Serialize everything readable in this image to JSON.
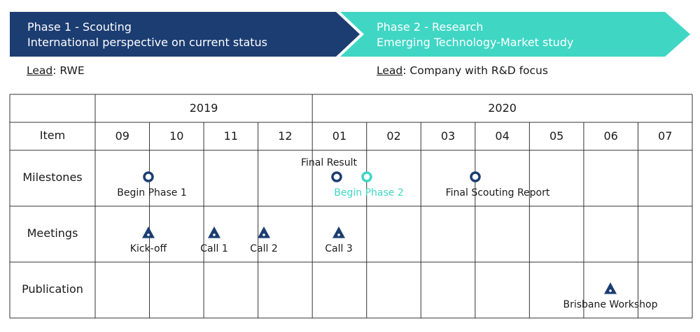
{
  "colors": {
    "phase1": "#1c3d72",
    "phase2": "#3fd6c4",
    "phase2_text": "#ffffff",
    "phase1_text": "#ffffff",
    "grid": "#333333",
    "marker_dark": "#1c3d72",
    "marker_teal": "#3fd6c4"
  },
  "phases": [
    {
      "line1": "Phase 1 - Scouting",
      "line2": "International perspective on current status",
      "lead_label": "Lead",
      "lead_value": ": RWE"
    },
    {
      "line1": "Phase 2 - Research",
      "line2": "Emerging Technology-Market study",
      "lead_label": "Lead",
      "lead_value": ": Company with R&D focus"
    }
  ],
  "table": {
    "years": [
      "2019",
      "2020"
    ],
    "item_header": "Item",
    "months": [
      "09",
      "10",
      "11",
      "12",
      "01",
      "02",
      "03",
      "04",
      "05",
      "06",
      "07"
    ],
    "rows": [
      "Milestones",
      "Meetings",
      "Publication"
    ]
  },
  "markers": [
    {
      "row": 0,
      "month": "09",
      "shape": "circle",
      "color": "dark",
      "label": "Begin Phase 1",
      "label_color": "dark_text",
      "label_pos": "below"
    },
    {
      "row": 0,
      "month": "01",
      "shape": "circle",
      "color": "dark",
      "label": "Final Result",
      "label_color": "dark_text",
      "label_pos": "above"
    },
    {
      "row": 0,
      "month": "02",
      "shape": "circle",
      "color": "teal",
      "label": "Begin Phase 2",
      "label_color": "teal",
      "label_pos": "below"
    },
    {
      "row": 0,
      "month": "04",
      "shape": "circle",
      "color": "dark",
      "label": "Final Scouting Report",
      "label_color": "dark_text",
      "label_pos": "below"
    },
    {
      "row": 1,
      "month": "09",
      "shape": "triangle",
      "color": "dark",
      "label": "Kick-off",
      "label_color": "dark_text",
      "label_pos": "below"
    },
    {
      "row": 1,
      "month": "10",
      "shape": "triangle",
      "color": "dark",
      "label": "Call 1",
      "label_color": "dark_text",
      "label_pos": "below"
    },
    {
      "row": 1,
      "month": "11",
      "shape": "triangle",
      "color": "dark",
      "label": "Call 2",
      "label_color": "dark_text",
      "label_pos": "below"
    },
    {
      "row": 1,
      "month": "01",
      "shape": "triangle",
      "color": "dark",
      "label": "Call 3",
      "label_color": "dark_text",
      "label_pos": "below"
    },
    {
      "row": 2,
      "month": "06",
      "shape": "triangle",
      "color": "dark",
      "label": "Brisbane Workshop",
      "label_color": "dark_text",
      "label_pos": "below"
    }
  ]
}
